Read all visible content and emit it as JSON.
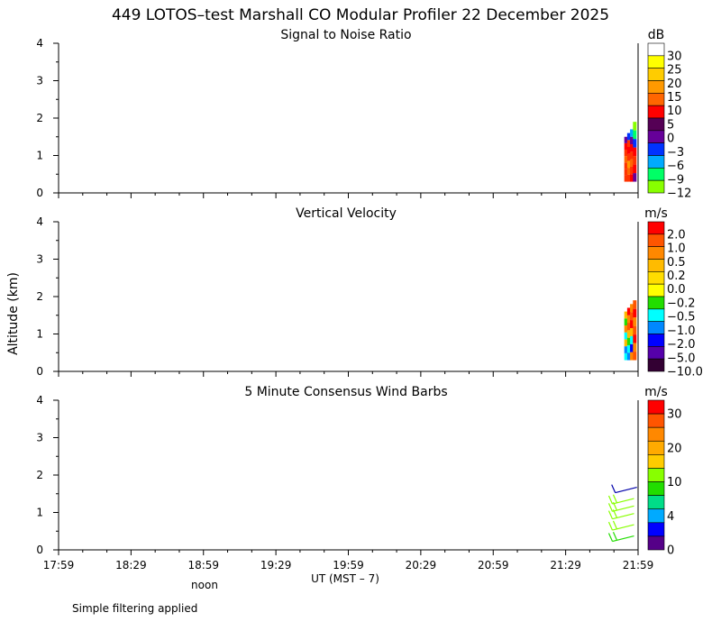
{
  "chart_data": {
    "type": "heatmap",
    "title": "449 LOTOS–test Marshall CO Modular Profiler 22 December 2025",
    "ylabel": "Altitude (km)",
    "xlabel": "UT  (MST – 7)",
    "noon_label": "noon",
    "footer": "Simple filtering applied",
    "x_ticks": [
      "17:59",
      "18:29",
      "18:59",
      "19:29",
      "19:59",
      "20:29",
      "20:59",
      "21:29",
      "21:59"
    ],
    "x_range_hours": [
      17.983,
      21.983
    ],
    "panels": [
      {
        "id": "snr",
        "title": "Signal to Noise Ratio",
        "unit": "dB",
        "ylim": [
          0,
          4
        ],
        "y_ticks": [
          "0",
          "1",
          "2",
          "3",
          "4"
        ],
        "colorbar": {
          "labels": [
            "30",
            "25",
            "20",
            "15",
            "10",
            "5",
            "0",
            "−3",
            "−6",
            "−9",
            "−12"
          ],
          "colors": [
            "#ffffff",
            "#ffff00",
            "#ffcc00",
            "#ff9900",
            "#ff6600",
            "#ff0000",
            "#550055",
            "#660099",
            "#0033ff",
            "#00aaff",
            "#00ff66",
            "#88ff00"
          ]
        },
        "data_columns": [
          {
            "time": 21.9,
            "low_km": 0.3,
            "high_km": 1.5,
            "profile": [
              "#ff3300",
              "#ff3300",
              "#ff3300",
              "#ff6600",
              "#ff3300",
              "#ff0000",
              "#660099"
            ]
          },
          {
            "time": 21.92,
            "low_km": 0.3,
            "high_km": 1.6,
            "profile": [
              "#ff3300",
              "#ff6600",
              "#ff9900",
              "#ff3300",
              "#ff0000",
              "#ff3300",
              "#0033ff"
            ]
          },
          {
            "time": 21.94,
            "low_km": 0.3,
            "high_km": 1.7,
            "profile": [
              "#ff0000",
              "#ff3300",
              "#ff6600",
              "#ff3300",
              "#ff0000",
              "#660099",
              "#00aaff"
            ]
          },
          {
            "time": 21.96,
            "low_km": 0.3,
            "high_km": 1.9,
            "profile": [
              "#660099",
              "#ff0000",
              "#ff3300",
              "#ff0000",
              "#0033ff",
              "#00ff66",
              "#88ff00"
            ]
          }
        ]
      },
      {
        "id": "vvel",
        "title": "Vertical Velocity",
        "unit": "m/s",
        "ylim": [
          0,
          4
        ],
        "y_ticks": [
          "0",
          "1",
          "2",
          "3",
          "4"
        ],
        "colorbar": {
          "labels": [
            "2.0",
            "1.0",
            "0.5",
            "0.2",
            "0.0",
            "−0.2",
            "−0.5",
            "−1.0",
            "−2.0",
            "−5.0",
            "−10.0"
          ],
          "colors": [
            "#ff0000",
            "#ff5500",
            "#ff8800",
            "#ffbb00",
            "#ffdd00",
            "#ffff00",
            "#22dd00",
            "#00ffff",
            "#0088ff",
            "#0000ff",
            "#5500aa",
            "#330033"
          ]
        },
        "data_columns": [
          {
            "time": 21.9,
            "low_km": 0.3,
            "high_km": 1.6,
            "profile": [
              "#00ffff",
              "#0088ff",
              "#ffbb00",
              "#00ffff",
              "#ff8800",
              "#22dd00",
              "#ffbb00"
            ]
          },
          {
            "time": 21.92,
            "low_km": 0.3,
            "high_km": 1.7,
            "profile": [
              "#0088ff",
              "#00ffff",
              "#22dd00",
              "#ffbb00",
              "#ff5500",
              "#ff8800",
              "#ff0000"
            ]
          },
          {
            "time": 21.94,
            "low_km": 0.3,
            "high_km": 1.8,
            "profile": [
              "#ff8800",
              "#0000ff",
              "#00ffff",
              "#ffbb00",
              "#ff0000",
              "#ff5500",
              "#ff8800"
            ]
          },
          {
            "time": 21.96,
            "low_km": 0.3,
            "high_km": 1.9,
            "profile": [
              "#ff5500",
              "#ff8800",
              "#ff0000",
              "#ff5500",
              "#ff8800",
              "#ff0000",
              "#ff5500"
            ]
          }
        ]
      },
      {
        "id": "wind",
        "title": "5 Minute Consensus Wind Barbs",
        "unit": "m/s",
        "ylim": [
          0,
          4
        ],
        "y_ticks": [
          "0",
          "1",
          "2",
          "3",
          "4"
        ],
        "colorbar": {
          "labels": [
            "30",
            "20",
            "10",
            "4",
            "0"
          ],
          "colors": [
            "#ff0000",
            "#ff5500",
            "#ff8800",
            "#ffaa00",
            "#ffcc00",
            "#88ff00",
            "#22dd00",
            "#00dd88",
            "#00aaff",
            "#0000ff",
            "#550088"
          ]
        },
        "barbs": [
          {
            "time": 21.93,
            "alt_km": 0.3,
            "speed_ms": 8,
            "color": "#22dd00"
          },
          {
            "time": 21.93,
            "alt_km": 0.6,
            "speed_ms": 10,
            "color": "#88ff00"
          },
          {
            "time": 21.93,
            "alt_km": 0.9,
            "speed_ms": 10,
            "color": "#88ff00"
          },
          {
            "time": 21.93,
            "alt_km": 1.1,
            "speed_ms": 10,
            "color": "#88ff00"
          },
          {
            "time": 21.93,
            "alt_km": 1.3,
            "speed_ms": 10,
            "color": "#88ff00"
          },
          {
            "time": 21.95,
            "alt_km": 1.6,
            "speed_ms": 2,
            "color": "#0000aa"
          }
        ]
      }
    ]
  }
}
